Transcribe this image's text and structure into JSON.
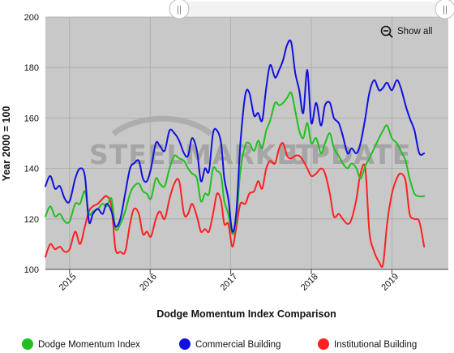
{
  "chart_data": {
    "type": "line",
    "title": "",
    "xlabel": "Dodge Momentum Index Comparison",
    "ylabel": "Year 2000 = 100",
    "ylim": [
      100,
      200
    ],
    "yticks": [
      100,
      120,
      140,
      160,
      180,
      200
    ],
    "xlim": [
      2014.7,
      2019.7
    ],
    "xticks": [
      {
        "value": 2015,
        "label": "2015"
      },
      {
        "value": 2016,
        "label": "2016"
      },
      {
        "value": 2017,
        "label": "2017"
      },
      {
        "value": 2018,
        "label": "2018"
      },
      {
        "value": 2019,
        "label": "2019"
      }
    ],
    "grid": true,
    "legend_position": "bottom",
    "background": "#c8c8c8",
    "series": [
      {
        "name": "Dodge Momentum Index",
        "color": "#1fc01f",
        "points": [
          [
            2014.7,
            121
          ],
          [
            2014.76,
            125
          ],
          [
            2014.82,
            121
          ],
          [
            2014.88,
            122
          ],
          [
            2014.94,
            119
          ],
          [
            2015.0,
            119
          ],
          [
            2015.07,
            126
          ],
          [
            2015.13,
            126
          ],
          [
            2015.19,
            131
          ],
          [
            2015.24,
            122
          ],
          [
            2015.29,
            123
          ],
          [
            2015.35,
            124
          ],
          [
            2015.41,
            126
          ],
          [
            2015.46,
            125
          ],
          [
            2015.52,
            128
          ],
          [
            2015.57,
            116
          ],
          [
            2015.63,
            118
          ],
          [
            2015.69,
            123
          ],
          [
            2015.75,
            130
          ],
          [
            2015.8,
            133
          ],
          [
            2015.86,
            134
          ],
          [
            2015.91,
            131
          ],
          [
            2015.96,
            130
          ],
          [
            2016.01,
            128
          ],
          [
            2016.07,
            136
          ],
          [
            2016.12,
            134
          ],
          [
            2016.18,
            133
          ],
          [
            2016.24,
            140
          ],
          [
            2016.3,
            145
          ],
          [
            2016.36,
            144
          ],
          [
            2016.42,
            143
          ],
          [
            2016.47,
            140
          ],
          [
            2016.52,
            138
          ],
          [
            2016.58,
            136
          ],
          [
            2016.63,
            127
          ],
          [
            2016.68,
            130
          ],
          [
            2016.73,
            130
          ],
          [
            2016.78,
            140
          ],
          [
            2016.83,
            139
          ],
          [
            2016.88,
            137
          ],
          [
            2016.92,
            127
          ],
          [
            2016.97,
            122
          ],
          [
            2017.02,
            114
          ],
          [
            2017.07,
            120
          ],
          [
            2017.12,
            139
          ],
          [
            2017.18,
            149
          ],
          [
            2017.23,
            150
          ],
          [
            2017.29,
            147
          ],
          [
            2017.34,
            151
          ],
          [
            2017.39,
            148
          ],
          [
            2017.44,
            155
          ],
          [
            2017.49,
            159
          ],
          [
            2017.55,
            166
          ],
          [
            2017.6,
            165
          ],
          [
            2017.65,
            166
          ],
          [
            2017.7,
            168
          ],
          [
            2017.75,
            170
          ],
          [
            2017.8,
            163
          ],
          [
            2017.85,
            155
          ],
          [
            2017.9,
            152
          ],
          [
            2017.95,
            158
          ],
          [
            2018.0,
            150
          ],
          [
            2018.06,
            152
          ],
          [
            2018.12,
            146
          ],
          [
            2018.17,
            150
          ],
          [
            2018.23,
            154
          ],
          [
            2018.28,
            148
          ],
          [
            2018.34,
            145
          ],
          [
            2018.39,
            142
          ],
          [
            2018.45,
            140
          ],
          [
            2018.5,
            142
          ],
          [
            2018.56,
            140
          ],
          [
            2018.61,
            136
          ],
          [
            2018.67,
            141
          ],
          [
            2018.72,
            144
          ],
          [
            2018.78,
            148
          ],
          [
            2018.84,
            152
          ],
          [
            2018.89,
            155
          ],
          [
            2018.94,
            157
          ],
          [
            2019.0,
            152
          ],
          [
            2019.06,
            150
          ],
          [
            2019.11,
            147
          ],
          [
            2019.17,
            143
          ],
          [
            2019.22,
            136
          ],
          [
            2019.28,
            130
          ],
          [
            2019.34,
            129
          ],
          [
            2019.4,
            129
          ]
        ]
      },
      {
        "name": "Commercial Building",
        "color": "#1010e0",
        "points": [
          [
            2014.7,
            133
          ],
          [
            2014.76,
            137
          ],
          [
            2014.82,
            132
          ],
          [
            2014.88,
            133
          ],
          [
            2014.94,
            128
          ],
          [
            2015.0,
            127
          ],
          [
            2015.07,
            136
          ],
          [
            2015.13,
            140
          ],
          [
            2015.19,
            137
          ],
          [
            2015.24,
            119
          ],
          [
            2015.29,
            122
          ],
          [
            2015.35,
            124
          ],
          [
            2015.41,
            122
          ],
          [
            2015.46,
            126
          ],
          [
            2015.52,
            123
          ],
          [
            2015.57,
            117
          ],
          [
            2015.63,
            120
          ],
          [
            2015.69,
            130
          ],
          [
            2015.75,
            140
          ],
          [
            2015.8,
            142
          ],
          [
            2015.86,
            143
          ],
          [
            2015.91,
            136
          ],
          [
            2015.96,
            135
          ],
          [
            2016.01,
            140
          ],
          [
            2016.07,
            150
          ],
          [
            2016.12,
            149
          ],
          [
            2016.18,
            147
          ],
          [
            2016.24,
            155
          ],
          [
            2016.3,
            154
          ],
          [
            2016.36,
            151
          ],
          [
            2016.42,
            146
          ],
          [
            2016.47,
            145
          ],
          [
            2016.52,
            152
          ],
          [
            2016.58,
            147
          ],
          [
            2016.63,
            135
          ],
          [
            2016.68,
            140
          ],
          [
            2016.73,
            139
          ],
          [
            2016.78,
            154
          ],
          [
            2016.83,
            155
          ],
          [
            2016.88,
            150
          ],
          [
            2016.92,
            136
          ],
          [
            2016.97,
            128
          ],
          [
            2017.02,
            115
          ],
          [
            2017.07,
            123
          ],
          [
            2017.12,
            150
          ],
          [
            2017.18,
            169
          ],
          [
            2017.23,
            170
          ],
          [
            2017.29,
            161
          ],
          [
            2017.34,
            162
          ],
          [
            2017.39,
            159
          ],
          [
            2017.44,
            172
          ],
          [
            2017.49,
            181
          ],
          [
            2017.55,
            176
          ],
          [
            2017.6,
            179
          ],
          [
            2017.65,
            183
          ],
          [
            2017.7,
            189
          ],
          [
            2017.75,
            190
          ],
          [
            2017.8,
            178
          ],
          [
            2017.85,
            171
          ],
          [
            2017.9,
            162
          ],
          [
            2017.95,
            179
          ],
          [
            2018.0,
            158
          ],
          [
            2018.06,
            166
          ],
          [
            2018.12,
            157
          ],
          [
            2018.17,
            165
          ],
          [
            2018.23,
            166
          ],
          [
            2018.28,
            160
          ],
          [
            2018.34,
            158
          ],
          [
            2018.39,
            153
          ],
          [
            2018.45,
            146
          ],
          [
            2018.5,
            148
          ],
          [
            2018.56,
            146
          ],
          [
            2018.61,
            150
          ],
          [
            2018.67,
            160
          ],
          [
            2018.72,
            170
          ],
          [
            2018.78,
            175
          ],
          [
            2018.84,
            171
          ],
          [
            2018.89,
            172
          ],
          [
            2018.94,
            174
          ],
          [
            2019.0,
            171
          ],
          [
            2019.06,
            175
          ],
          [
            2019.11,
            172
          ],
          [
            2019.17,
            165
          ],
          [
            2019.22,
            160
          ],
          [
            2019.28,
            155
          ],
          [
            2019.34,
            146
          ],
          [
            2019.4,
            146
          ]
        ]
      },
      {
        "name": "Institutional Building",
        "color": "#ff2020",
        "points": [
          [
            2014.7,
            105
          ],
          [
            2014.76,
            110
          ],
          [
            2014.82,
            108
          ],
          [
            2014.88,
            109
          ],
          [
            2014.94,
            107
          ],
          [
            2015.0,
            108
          ],
          [
            2015.07,
            115
          ],
          [
            2015.13,
            110
          ],
          [
            2015.19,
            117
          ],
          [
            2015.24,
            123
          ],
          [
            2015.29,
            125
          ],
          [
            2015.35,
            126
          ],
          [
            2015.41,
            128
          ],
          [
            2015.46,
            129
          ],
          [
            2015.52,
            125
          ],
          [
            2015.57,
            108
          ],
          [
            2015.63,
            107
          ],
          [
            2015.69,
            107
          ],
          [
            2015.75,
            118
          ],
          [
            2015.8,
            124
          ],
          [
            2015.86,
            122
          ],
          [
            2015.91,
            114
          ],
          [
            2015.96,
            115
          ],
          [
            2016.01,
            113
          ],
          [
            2016.07,
            120
          ],
          [
            2016.12,
            123
          ],
          [
            2016.18,
            120
          ],
          [
            2016.24,
            128
          ],
          [
            2016.3,
            134
          ],
          [
            2016.36,
            135
          ],
          [
            2016.42,
            122
          ],
          [
            2016.47,
            122
          ],
          [
            2016.52,
            126
          ],
          [
            2016.58,
            121
          ],
          [
            2016.63,
            115
          ],
          [
            2016.68,
            116
          ],
          [
            2016.73,
            115
          ],
          [
            2016.78,
            122
          ],
          [
            2016.83,
            130
          ],
          [
            2016.88,
            127
          ],
          [
            2016.92,
            118
          ],
          [
            2016.97,
            118
          ],
          [
            2017.02,
            109
          ],
          [
            2017.07,
            117
          ],
          [
            2017.12,
            126
          ],
          [
            2017.18,
            126
          ],
          [
            2017.23,
            130
          ],
          [
            2017.29,
            131
          ],
          [
            2017.34,
            135
          ],
          [
            2017.39,
            132
          ],
          [
            2017.44,
            140
          ],
          [
            2017.49,
            143
          ],
          [
            2017.55,
            142
          ],
          [
            2017.6,
            148
          ],
          [
            2017.65,
            150
          ],
          [
            2017.7,
            145
          ],
          [
            2017.75,
            144
          ],
          [
            2017.8,
            145
          ],
          [
            2017.85,
            145
          ],
          [
            2017.9,
            143
          ],
          [
            2017.95,
            140
          ],
          [
            2018.0,
            137
          ],
          [
            2018.06,
            138
          ],
          [
            2018.12,
            140
          ],
          [
            2018.17,
            138
          ],
          [
            2018.23,
            130
          ],
          [
            2018.28,
            121
          ],
          [
            2018.34,
            122
          ],
          [
            2018.39,
            120
          ],
          [
            2018.45,
            118
          ],
          [
            2018.5,
            120
          ],
          [
            2018.56,
            128
          ],
          [
            2018.61,
            138
          ],
          [
            2018.67,
            140
          ],
          [
            2018.72,
            115
          ],
          [
            2018.78,
            107
          ],
          [
            2018.84,
            103
          ],
          [
            2018.89,
            102
          ],
          [
            2018.94,
            118
          ],
          [
            2019.0,
            130
          ],
          [
            2019.06,
            136
          ],
          [
            2019.11,
            138
          ],
          [
            2019.17,
            135
          ],
          [
            2019.22,
            122
          ],
          [
            2019.28,
            120
          ],
          [
            2019.34,
            119
          ],
          [
            2019.4,
            109
          ]
        ]
      }
    ]
  },
  "navigator": {
    "left_handle_glyph": "||",
    "right_handle_glyph": "||"
  },
  "zoom": {
    "show_all_label": "Show all"
  },
  "watermark": {
    "word1": "STEEL",
    "word2": "MARKET",
    "word3": "UPDATE",
    "color": "#8a8a8a"
  }
}
